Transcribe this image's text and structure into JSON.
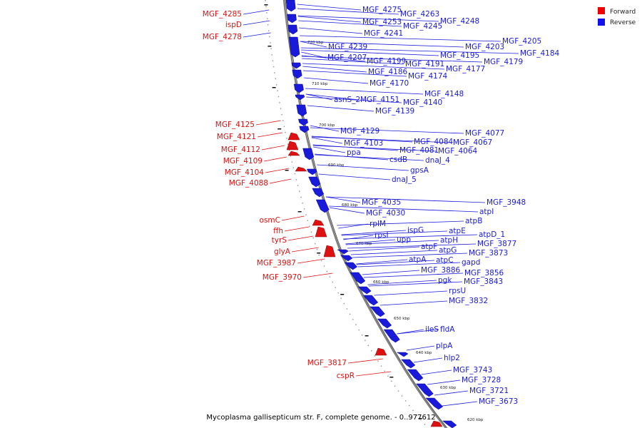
{
  "caption": "Mycoplasma gallisepticum str. F, complete genome. - 0..977612",
  "legend": [
    {
      "label": "Forward",
      "color": "#ee0000"
    },
    {
      "label": "Reverse",
      "color": "#1111ee"
    }
  ],
  "colors": {
    "forward": "#dd1111",
    "reverse": "#1a1adb",
    "backbone": "#808080"
  },
  "ticks": [
    "720 kbp",
    "710 kbp",
    "700 kbp",
    "690 kbp",
    "680 kbp",
    "670 kbp",
    "660 kbp",
    "650 kbp",
    "640 kbp",
    "630 kbp",
    "620 kbp"
  ],
  "forward_labels": [
    "MGF_4285",
    "ispD",
    "MGF_4278",
    "MGF_4125",
    "MGF_4121",
    "MGF_4112",
    "MGF_4109",
    "MGF_4104",
    "MGF_4088",
    "osmC",
    "ffh",
    "tyrS",
    "glyA",
    "MGF_3987",
    "MGF_3970",
    "MGF_3817",
    "cspR"
  ],
  "reverse_labels": [
    "MGF_4275",
    "MGF_4263",
    "MGF_4253",
    "MGF_4248",
    "MGF_4245",
    "MGF_4241",
    "MGF_4205",
    "MGF_4239",
    "MGF_4203",
    "MGF_4184",
    "MGF_4207",
    "MGF_4195",
    "MGF_4199",
    "MGF_4191",
    "MGF_4179",
    "MGF_4177",
    "MGF_4186",
    "MGF_4174",
    "MGF_4170",
    "MGF_4148",
    "asnS_2",
    "MGF_4151",
    "MGF_4140",
    "MGF_4139",
    "MGF_4129",
    "MGF_4077",
    "MGF_4103",
    "MGF_4084",
    "MGF_4067",
    "ppa",
    "MGF_4081",
    "MGF_4064",
    "csdB",
    "dnaJ_4",
    "gpsA",
    "dnaJ_5",
    "MGF_4035",
    "MGF_4030",
    "MGF_3948",
    "atpI",
    "rplM",
    "atpB",
    "rpsI",
    "ispG",
    "atpE",
    "upp",
    "atpH",
    "atpD_1",
    "atpF",
    "MGF_3877",
    "atpG",
    "MGF_3873",
    "atpA",
    "atpC",
    "gapd",
    "MGF_3886",
    "MGF_3856",
    "pgk",
    "MGF_3843",
    "rpsU",
    "MGF_3832",
    "ileS",
    "fldA",
    "plpA",
    "hlp2",
    "MGF_3743",
    "MGF_3728",
    "MGF_3721",
    "MGF_3673"
  ]
}
